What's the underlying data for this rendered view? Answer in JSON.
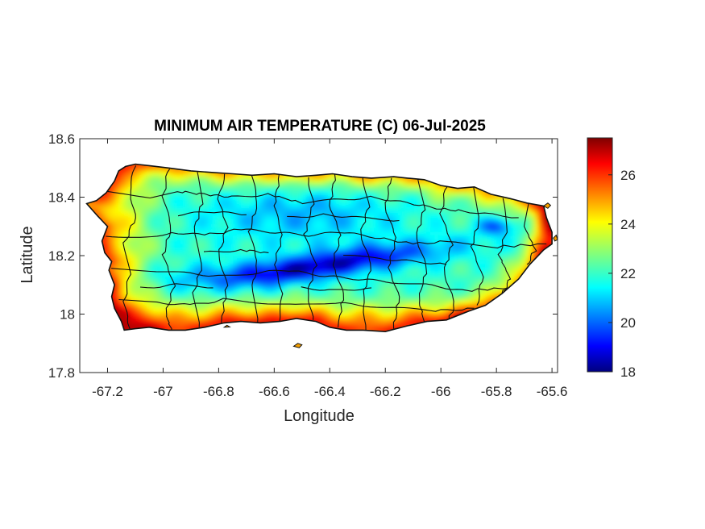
{
  "figure": {
    "title": "MINIMUM AIR TEMPERATURE (C) 06-Jul-2025",
    "xlabel": "Longitude",
    "ylabel": "Latitude"
  },
  "chart_data": {
    "type": "heatmap",
    "title": "MINIMUM AIR TEMPERATURE (C) 06-Jul-2025",
    "xlabel": "Longitude",
    "ylabel": "Latitude",
    "xlim": [
      -67.3,
      -65.58
    ],
    "ylim": [
      17.8,
      18.6
    ],
    "xticks": [
      -67.2,
      -67,
      -66.8,
      -66.6,
      -66.4,
      -66.2,
      -66,
      -65.8,
      -65.6
    ],
    "xtick_labels": [
      "-67.2",
      "-67",
      "-66.8",
      "-66.6",
      "-66.4",
      "-66.2",
      "-66",
      "-65.8",
      "-65.6"
    ],
    "yticks": [
      17.8,
      18,
      18.2,
      18.4,
      18.6
    ],
    "ytick_labels": [
      "17.8",
      "18",
      "18.2",
      "18.4",
      "18.6"
    ],
    "colorbar": {
      "colormap": "jet",
      "range": [
        18,
        27.5
      ],
      "ticks": [
        18,
        20,
        22,
        24,
        26
      ],
      "tick_labels": [
        "18",
        "20",
        "22",
        "24",
        "26"
      ]
    },
    "grid": false,
    "value_pattern": {
      "coastal_warm_c": 25,
      "east_coast_max_c": 27,
      "central_cordillera_min_c": 18.5,
      "north_central_c": 22
    }
  }
}
